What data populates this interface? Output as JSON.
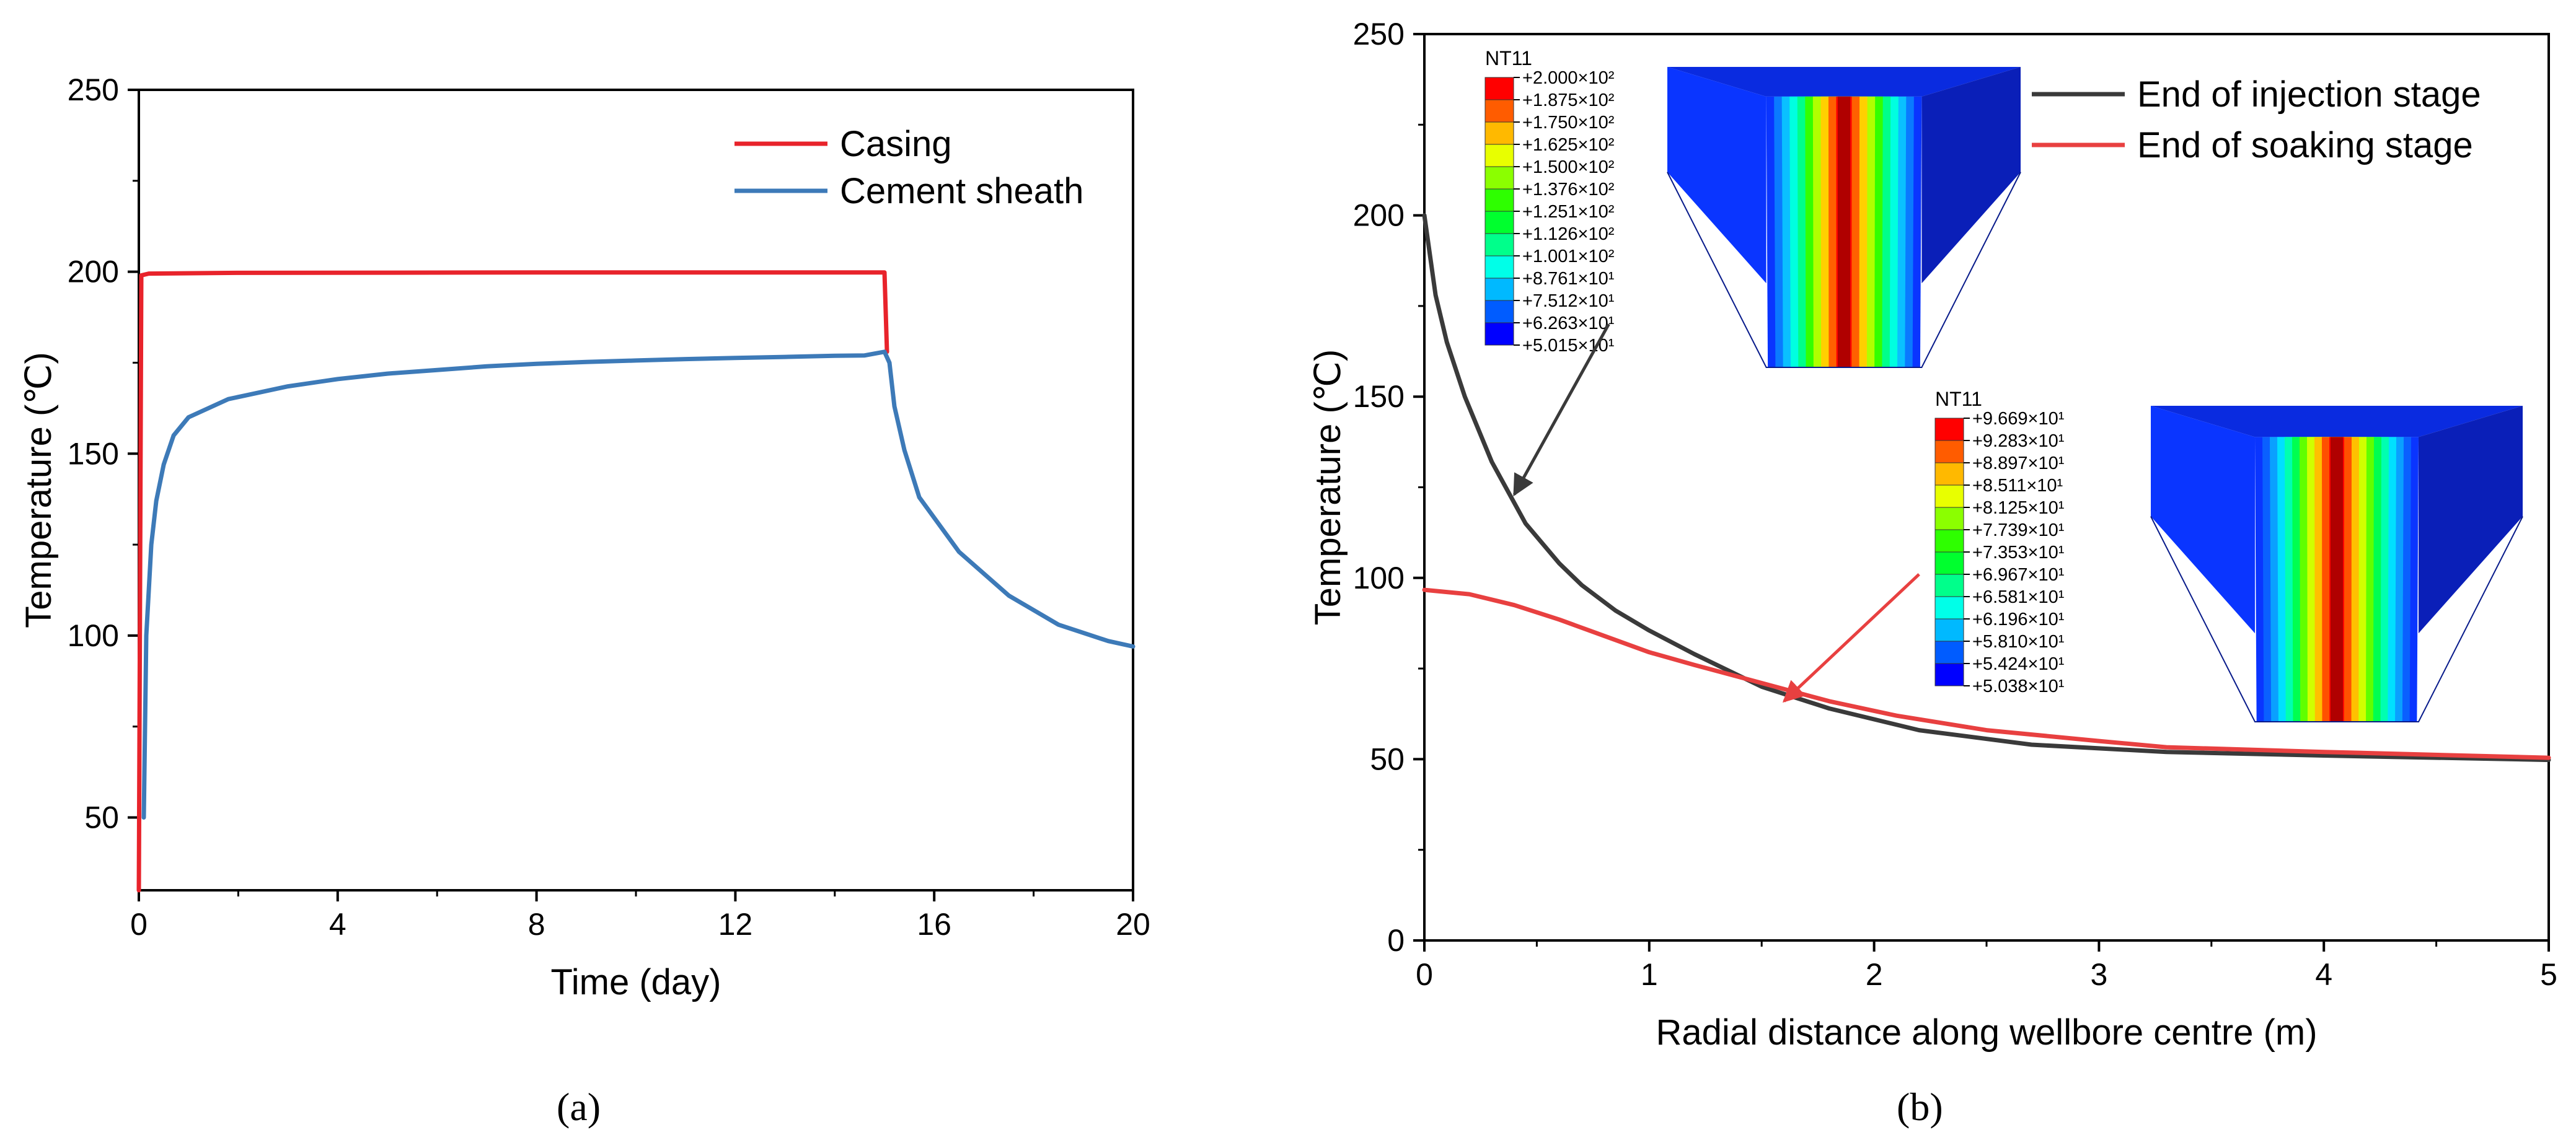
{
  "colors": {
    "casing": "#e8232b",
    "cement": "#3d7ab8",
    "injection": "#3a3a3a",
    "soaking": "#e84040",
    "contour": [
      "#0000ff",
      "#005cff",
      "#00b9ff",
      "#00ffe8",
      "#00ff8b",
      "#00ff2e",
      "#2eff00",
      "#8bff00",
      "#e8ff00",
      "#ffb900",
      "#ff5c00",
      "#ff0000"
    ]
  },
  "captions": {
    "a": "(a)",
    "b": "(b)"
  },
  "chart_data": [
    {
      "id": "a",
      "type": "line",
      "xlabel": "Time (day)",
      "ylabel": "Temperature (℃)",
      "xlim": [
        0,
        20
      ],
      "ylim": [
        30,
        250
      ],
      "xticks": [
        0,
        4,
        8,
        12,
        16,
        20
      ],
      "yticks": [
        50,
        100,
        150,
        200,
        250
      ],
      "legend_position": "top-right",
      "series": [
        {
          "name": "Casing",
          "color_key": "casing",
          "points": [
            [
              0,
              30
            ],
            [
              0.05,
              199
            ],
            [
              0.2,
              199.5
            ],
            [
              2,
              199.7
            ],
            [
              8,
              199.8
            ],
            [
              14,
              199.8
            ],
            [
              15,
              199.8
            ],
            [
              15.05,
              178
            ]
          ]
        },
        {
          "name": "Cement sheath",
          "color_key": "cement",
          "points": [
            [
              0.1,
              50
            ],
            [
              0.15,
              100
            ],
            [
              0.25,
              125
            ],
            [
              0.35,
              137
            ],
            [
              0.5,
              147
            ],
            [
              0.7,
              155
            ],
            [
              1,
              160
            ],
            [
              1.8,
              165
            ],
            [
              3,
              168.5
            ],
            [
              4,
              170.5
            ],
            [
              5,
              172
            ],
            [
              6,
              173
            ],
            [
              7,
              174
            ],
            [
              8,
              174.7
            ],
            [
              9,
              175.2
            ],
            [
              10,
              175.6
            ],
            [
              11,
              176
            ],
            [
              12,
              176.3
            ],
            [
              13,
              176.6
            ],
            [
              14,
              176.9
            ],
            [
              14.6,
              177
            ],
            [
              15,
              178
            ],
            [
              15.1,
              175
            ],
            [
              15.2,
              163
            ],
            [
              15.4,
              151
            ],
            [
              15.7,
              138
            ],
            [
              16.5,
              123
            ],
            [
              17.5,
              111
            ],
            [
              18.5,
              103
            ],
            [
              19.5,
              98.5
            ],
            [
              20,
              97
            ]
          ]
        }
      ]
    },
    {
      "id": "b",
      "type": "line",
      "xlabel": "Radial distance along wellbore centre (m)",
      "ylabel": "Temperature (℃)",
      "xlim": [
        0,
        5
      ],
      "ylim": [
        0,
        250
      ],
      "xticks": [
        0,
        1,
        2,
        3,
        4,
        5
      ],
      "yticks": [
        0,
        50,
        100,
        150,
        200,
        250
      ],
      "legend_position": "top-right",
      "series": [
        {
          "name": "End of injection stage",
          "color_key": "injection",
          "points": [
            [
              0,
              200
            ],
            [
              0.05,
              178
            ],
            [
              0.1,
              165
            ],
            [
              0.18,
              150
            ],
            [
              0.3,
              132
            ],
            [
              0.45,
              115
            ],
            [
              0.6,
              104
            ],
            [
              0.7,
              98
            ],
            [
              0.85,
              91
            ],
            [
              1,
              85.5
            ],
            [
              1.2,
              79
            ],
            [
              1.5,
              70
            ],
            [
              1.8,
              64
            ],
            [
              2.2,
              58
            ],
            [
              2.7,
              54
            ],
            [
              3.3,
              52
            ],
            [
              4,
              51
            ],
            [
              5,
              49.8
            ]
          ]
        },
        {
          "name": "End of soaking stage",
          "color_key": "soaking",
          "points": [
            [
              0,
              96.7
            ],
            [
              0.2,
              95.5
            ],
            [
              0.4,
              92.5
            ],
            [
              0.6,
              88.5
            ],
            [
              0.8,
              84
            ],
            [
              1,
              79.5
            ],
            [
              1.2,
              76
            ],
            [
              1.5,
              71
            ],
            [
              1.8,
              66
            ],
            [
              2.1,
              62
            ],
            [
              2.5,
              58
            ],
            [
              3,
              55
            ],
            [
              3.3,
              53.3
            ],
            [
              4,
              52
            ],
            [
              5,
              50.4
            ]
          ]
        }
      ],
      "annotations": [
        {
          "from": [
            0.82,
            170
          ],
          "to": [
            0.4,
            123
          ],
          "color_key": "injection"
        },
        {
          "from": [
            2.2,
            101
          ],
          "to": [
            1.6,
            66
          ],
          "color_key": "soaking"
        }
      ],
      "insets": [
        {
          "name": "injection",
          "title": "NT11",
          "labels": [
            "+2.000×10²",
            "+1.875×10²",
            "+1.750×10²",
            "+1.625×10²",
            "+1.500×10²",
            "+1.376×10²",
            "+1.251×10²",
            "+1.126×10²",
            "+1.001×10²",
            "+8.761×10¹",
            "+7.512×10¹",
            "+6.263×10¹",
            "+5.015×10¹"
          ],
          "peak": "red"
        },
        {
          "name": "soaking",
          "title": "NT11",
          "labels": [
            "+9.669×10¹",
            "+9.283×10¹",
            "+8.897×10¹",
            "+8.511×10¹",
            "+8.125×10¹",
            "+7.739×10¹",
            "+7.353×10¹",
            "+6.967×10¹",
            "+6.581×10¹",
            "+6.196×10¹",
            "+5.810×10¹",
            "+5.424×10¹",
            "+5.038×10¹"
          ],
          "peak": "red"
        }
      ]
    }
  ]
}
